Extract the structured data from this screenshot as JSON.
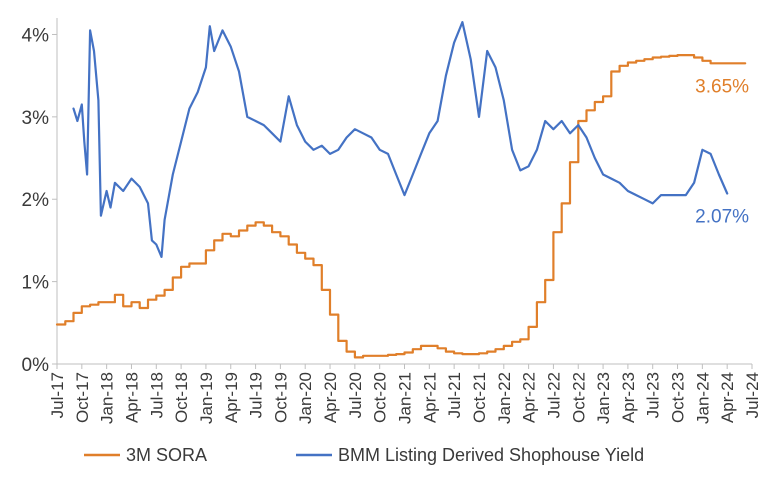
{
  "chart_data": {
    "type": "line",
    "title": "",
    "xlabel": "",
    "ylabel": "",
    "ylim": [
      0,
      4.2
    ],
    "xlim": [
      "2017-07",
      "2024-07"
    ],
    "grid": false,
    "legend_position": "bottom",
    "y_ticks": [
      {
        "value": 0,
        "label": "0%"
      },
      {
        "value": 1,
        "label": "1%"
      },
      {
        "value": 2,
        "label": "2%"
      },
      {
        "value": 3,
        "label": "3%"
      },
      {
        "value": 4,
        "label": "4%"
      }
    ],
    "x_ticks": [
      {
        "value": "2017-07",
        "label": "Jul-17"
      },
      {
        "value": "2017-10",
        "label": "Oct-17"
      },
      {
        "value": "2018-01",
        "label": "Jan-18"
      },
      {
        "value": "2018-04",
        "label": "Apr-18"
      },
      {
        "value": "2018-07",
        "label": "Jul-18"
      },
      {
        "value": "2018-10",
        "label": "Oct-18"
      },
      {
        "value": "2019-01",
        "label": "Jan-19"
      },
      {
        "value": "2019-04",
        "label": "Apr-19"
      },
      {
        "value": "2019-07",
        "label": "Jul-19"
      },
      {
        "value": "2019-10",
        "label": "Oct-19"
      },
      {
        "value": "2020-01",
        "label": "Jan-20"
      },
      {
        "value": "2020-04",
        "label": "Apr-20"
      },
      {
        "value": "2020-07",
        "label": "Jul-20"
      },
      {
        "value": "2020-10",
        "label": "Oct-20"
      },
      {
        "value": "2021-01",
        "label": "Jan-21"
      },
      {
        "value": "2021-04",
        "label": "Apr-21"
      },
      {
        "value": "2021-07",
        "label": "Jul-21"
      },
      {
        "value": "2021-10",
        "label": "Oct-21"
      },
      {
        "value": "2022-01",
        "label": "Jan-22"
      },
      {
        "value": "2022-04",
        "label": "Apr-22"
      },
      {
        "value": "2022-07",
        "label": "Jul-22"
      },
      {
        "value": "2022-10",
        "label": "Oct-22"
      },
      {
        "value": "2023-01",
        "label": "Jan-23"
      },
      {
        "value": "2023-04",
        "label": "Apr-23"
      },
      {
        "value": "2023-07",
        "label": "Jul-23"
      },
      {
        "value": "2023-10",
        "label": "Oct-23"
      },
      {
        "value": "2024-01",
        "label": "Jan-24"
      },
      {
        "value": "2024-04",
        "label": "Apr-24"
      },
      {
        "value": "2024-07",
        "label": "Jul-24"
      }
    ],
    "series": [
      {
        "name": "3M SORA",
        "color": "#e07f2a",
        "step": true,
        "end_label": "3.65%",
        "points": [
          [
            "2017-07",
            0.48
          ],
          [
            "2017-08",
            0.52
          ],
          [
            "2017-09",
            0.62
          ],
          [
            "2017-10",
            0.7
          ],
          [
            "2017-11",
            0.72
          ],
          [
            "2017-12",
            0.75
          ],
          [
            "2018-01",
            0.75
          ],
          [
            "2018-02",
            0.84
          ],
          [
            "2018-03",
            0.7
          ],
          [
            "2018-04",
            0.75
          ],
          [
            "2018-05",
            0.68
          ],
          [
            "2018-06",
            0.78
          ],
          [
            "2018-07",
            0.83
          ],
          [
            "2018-08",
            0.9
          ],
          [
            "2018-09",
            1.05
          ],
          [
            "2018-10",
            1.18
          ],
          [
            "2018-11",
            1.22
          ],
          [
            "2018-12",
            1.22
          ],
          [
            "2019-01",
            1.38
          ],
          [
            "2019-02",
            1.5
          ],
          [
            "2019-03",
            1.58
          ],
          [
            "2019-04",
            1.55
          ],
          [
            "2019-05",
            1.62
          ],
          [
            "2019-06",
            1.68
          ],
          [
            "2019-07",
            1.72
          ],
          [
            "2019-08",
            1.68
          ],
          [
            "2019-09",
            1.6
          ],
          [
            "2019-10",
            1.55
          ],
          [
            "2019-11",
            1.45
          ],
          [
            "2019-12",
            1.35
          ],
          [
            "2020-01",
            1.28
          ],
          [
            "2020-02",
            1.2
          ],
          [
            "2020-03",
            0.9
          ],
          [
            "2020-04",
            0.6
          ],
          [
            "2020-05",
            0.28
          ],
          [
            "2020-06",
            0.15
          ],
          [
            "2020-07",
            0.08
          ],
          [
            "2020-08",
            0.1
          ],
          [
            "2020-09",
            0.1
          ],
          [
            "2020-10",
            0.1
          ],
          [
            "2020-11",
            0.11
          ],
          [
            "2020-12",
            0.12
          ],
          [
            "2021-01",
            0.14
          ],
          [
            "2021-02",
            0.18
          ],
          [
            "2021-03",
            0.22
          ],
          [
            "2021-04",
            0.22
          ],
          [
            "2021-05",
            0.19
          ],
          [
            "2021-06",
            0.15
          ],
          [
            "2021-07",
            0.13
          ],
          [
            "2021-08",
            0.12
          ],
          [
            "2021-09",
            0.12
          ],
          [
            "2021-10",
            0.13
          ],
          [
            "2021-11",
            0.15
          ],
          [
            "2021-12",
            0.18
          ],
          [
            "2022-01",
            0.22
          ],
          [
            "2022-02",
            0.27
          ],
          [
            "2022-03",
            0.3
          ],
          [
            "2022-04",
            0.45
          ],
          [
            "2022-05",
            0.75
          ],
          [
            "2022-06",
            1.02
          ],
          [
            "2022-07",
            1.6
          ],
          [
            "2022-08",
            1.95
          ],
          [
            "2022-09",
            2.45
          ],
          [
            "2022-10",
            2.95
          ],
          [
            "2022-11",
            3.08
          ],
          [
            "2022-12",
            3.18
          ],
          [
            "2023-01",
            3.25
          ],
          [
            "2023-02",
            3.55
          ],
          [
            "2023-03",
            3.62
          ],
          [
            "2023-04",
            3.66
          ],
          [
            "2023-05",
            3.68
          ],
          [
            "2023-06",
            3.7
          ],
          [
            "2023-07",
            3.72
          ],
          [
            "2023-08",
            3.73
          ],
          [
            "2023-09",
            3.74
          ],
          [
            "2023-10",
            3.75
          ],
          [
            "2023-11",
            3.75
          ],
          [
            "2023-12",
            3.72
          ],
          [
            "2024-01",
            3.68
          ],
          [
            "2024-02",
            3.65
          ],
          [
            "2024-03",
            3.65
          ],
          [
            "2024-04",
            3.65
          ]
        ]
      },
      {
        "name": "BMM Listing Derived Shophouse Yield",
        "color": "#4472c4",
        "step": false,
        "end_label": "2.07%",
        "points": [
          [
            "2017-09",
            3.1
          ],
          [
            "2017-09-15",
            2.95
          ],
          [
            "2017-10",
            3.15
          ],
          [
            "2017-10-10",
            2.7
          ],
          [
            "2017-10-20",
            2.3
          ],
          [
            "2017-11",
            4.05
          ],
          [
            "2017-11-15",
            3.8
          ],
          [
            "2017-12",
            3.2
          ],
          [
            "2017-12-10",
            1.8
          ],
          [
            "2018-01",
            2.1
          ],
          [
            "2018-01-15",
            1.9
          ],
          [
            "2018-02",
            2.2
          ],
          [
            "2018-03",
            2.1
          ],
          [
            "2018-04",
            2.25
          ],
          [
            "2018-05",
            2.15
          ],
          [
            "2018-06",
            1.95
          ],
          [
            "2018-06-15",
            1.5
          ],
          [
            "2018-07",
            1.45
          ],
          [
            "2018-07-20",
            1.3
          ],
          [
            "2018-08",
            1.75
          ],
          [
            "2018-09",
            2.3
          ],
          [
            "2018-10",
            2.7
          ],
          [
            "2018-11",
            3.1
          ],
          [
            "2018-12",
            3.3
          ],
          [
            "2019-01",
            3.6
          ],
          [
            "2019-01-15",
            4.1
          ],
          [
            "2019-02",
            3.8
          ],
          [
            "2019-03",
            4.05
          ],
          [
            "2019-04",
            3.85
          ],
          [
            "2019-05",
            3.55
          ],
          [
            "2019-06",
            3.0
          ],
          [
            "2019-07",
            2.95
          ],
          [
            "2019-08",
            2.9
          ],
          [
            "2019-09",
            2.8
          ],
          [
            "2019-10",
            2.7
          ],
          [
            "2019-11",
            3.25
          ],
          [
            "2019-12",
            2.9
          ],
          [
            "2020-01",
            2.7
          ],
          [
            "2020-02",
            2.6
          ],
          [
            "2020-03",
            2.65
          ],
          [
            "2020-04",
            2.55
          ],
          [
            "2020-05",
            2.6
          ],
          [
            "2020-06",
            2.75
          ],
          [
            "2020-07",
            2.85
          ],
          [
            "2020-08",
            2.8
          ],
          [
            "2020-09",
            2.75
          ],
          [
            "2020-10",
            2.6
          ],
          [
            "2020-11",
            2.55
          ],
          [
            "2020-12",
            2.3
          ],
          [
            "2021-01",
            2.05
          ],
          [
            "2021-02",
            2.3
          ],
          [
            "2021-03",
            2.55
          ],
          [
            "2021-04",
            2.8
          ],
          [
            "2021-05",
            2.95
          ],
          [
            "2021-06",
            3.5
          ],
          [
            "2021-07",
            3.9
          ],
          [
            "2021-08",
            4.15
          ],
          [
            "2021-09",
            3.7
          ],
          [
            "2021-10",
            3.0
          ],
          [
            "2021-11",
            3.8
          ],
          [
            "2021-12",
            3.6
          ],
          [
            "2022-01",
            3.2
          ],
          [
            "2022-02",
            2.6
          ],
          [
            "2022-03",
            2.35
          ],
          [
            "2022-04",
            2.4
          ],
          [
            "2022-05",
            2.6
          ],
          [
            "2022-06",
            2.95
          ],
          [
            "2022-07",
            2.85
          ],
          [
            "2022-08",
            2.95
          ],
          [
            "2022-09",
            2.8
          ],
          [
            "2022-10",
            2.9
          ],
          [
            "2022-11",
            2.75
          ],
          [
            "2022-12",
            2.5
          ],
          [
            "2023-01",
            2.3
          ],
          [
            "2023-02",
            2.25
          ],
          [
            "2023-03",
            2.2
          ],
          [
            "2023-04",
            2.1
          ],
          [
            "2023-05",
            2.05
          ],
          [
            "2023-06",
            2.0
          ],
          [
            "2023-07",
            1.95
          ],
          [
            "2023-08",
            2.05
          ],
          [
            "2023-09",
            2.05
          ],
          [
            "2023-10",
            2.05
          ],
          [
            "2023-11",
            2.05
          ],
          [
            "2023-12",
            2.2
          ],
          [
            "2024-01",
            2.6
          ],
          [
            "2024-02",
            2.55
          ],
          [
            "2024-03",
            2.3
          ],
          [
            "2024-04",
            2.07
          ]
        ]
      }
    ]
  }
}
